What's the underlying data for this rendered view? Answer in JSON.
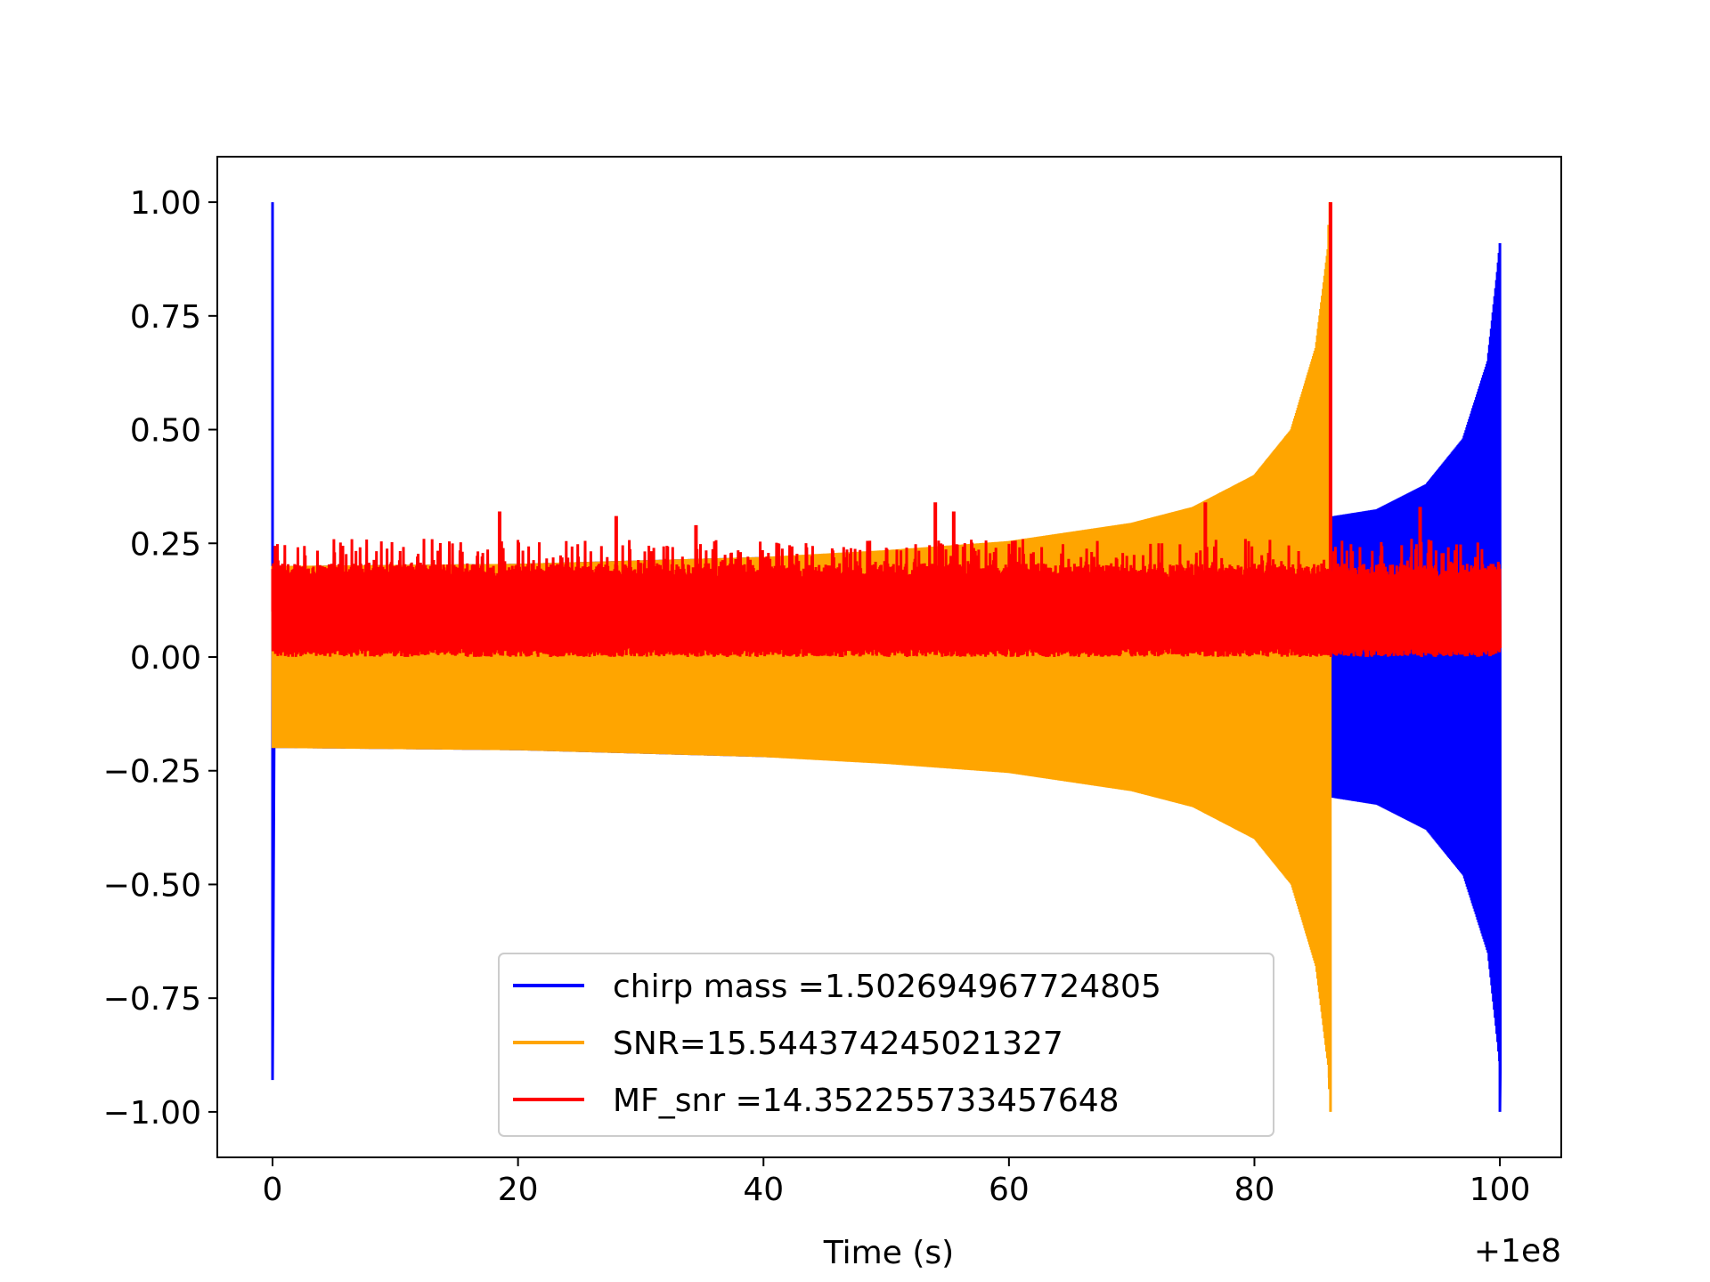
{
  "chart_data": {
    "type": "line",
    "title": "",
    "xlabel": "Time (s)",
    "ylabel": "",
    "x_offset_label": "+1e8",
    "xlim": [
      -4.5,
      105
    ],
    "ylim": [
      -1.1,
      1.1
    ],
    "xticks": [
      0,
      20,
      40,
      60,
      80,
      100
    ],
    "xtick_labels": [
      "0",
      "20",
      "40",
      "60",
      "80",
      "100"
    ],
    "yticks": [
      1.0,
      0.75,
      0.5,
      0.25,
      0.0,
      -0.25,
      -0.5,
      -0.75,
      -1.0
    ],
    "ytick_labels": [
      "1.00",
      "0.75",
      "0.50",
      "0.25",
      "0.00",
      "−0.25",
      "−0.50",
      "−0.75",
      "−1.00"
    ],
    "grid": false,
    "legend_position": "lower-center",
    "series": [
      {
        "name": "chirp mass =1.502694967724805",
        "color": "#0000ff",
        "description_values": {
          "t_start": 0,
          "t_end": 100,
          "peak_start": 1.0,
          "trough_start": -0.93,
          "envelope": [
            [
              0.5,
              0.2
            ],
            [
              20,
              0.205
            ],
            [
              40,
              0.22
            ],
            [
              60,
              0.24
            ],
            [
              80,
              0.28
            ],
            [
              86.5,
              0.31
            ],
            [
              90,
              0.325
            ],
            [
              94,
              0.38
            ],
            [
              97,
              0.48
            ],
            [
              99,
              0.65
            ],
            [
              99.8,
              0.85
            ],
            [
              100,
              0.91
            ]
          ],
          "end_trough": -1.0
        }
      },
      {
        "name": "SNR=15.544374245021327",
        "color": "#ffa500",
        "description_values": {
          "t_start": 0,
          "t_end": 86.2,
          "envelope": [
            [
              0,
              0.2
            ],
            [
              20,
              0.205
            ],
            [
              40,
              0.22
            ],
            [
              50,
              0.235
            ],
            [
              60,
              0.255
            ],
            [
              70,
              0.295
            ],
            [
              75,
              0.33
            ],
            [
              80,
              0.4
            ],
            [
              83,
              0.5
            ],
            [
              85,
              0.68
            ],
            [
              86,
              0.9
            ],
            [
              86.2,
              1.0
            ]
          ],
          "end_trough": -1.0
        }
      },
      {
        "name": "MF_snr =14.352255733457648",
        "color": "#ff0000",
        "description_values": {
          "t_start": 0,
          "t_end": 100,
          "baseline_range": [
            0.0,
            0.2
          ],
          "spikes": [
            [
              18.5,
              0.32
            ],
            [
              28,
              0.31
            ],
            [
              34.5,
              0.29
            ],
            [
              54,
              0.34
            ],
            [
              55.5,
              0.32
            ],
            [
              76,
              0.34
            ],
            [
              86.2,
              1.0
            ],
            [
              93.5,
              0.33
            ]
          ]
        }
      }
    ]
  }
}
